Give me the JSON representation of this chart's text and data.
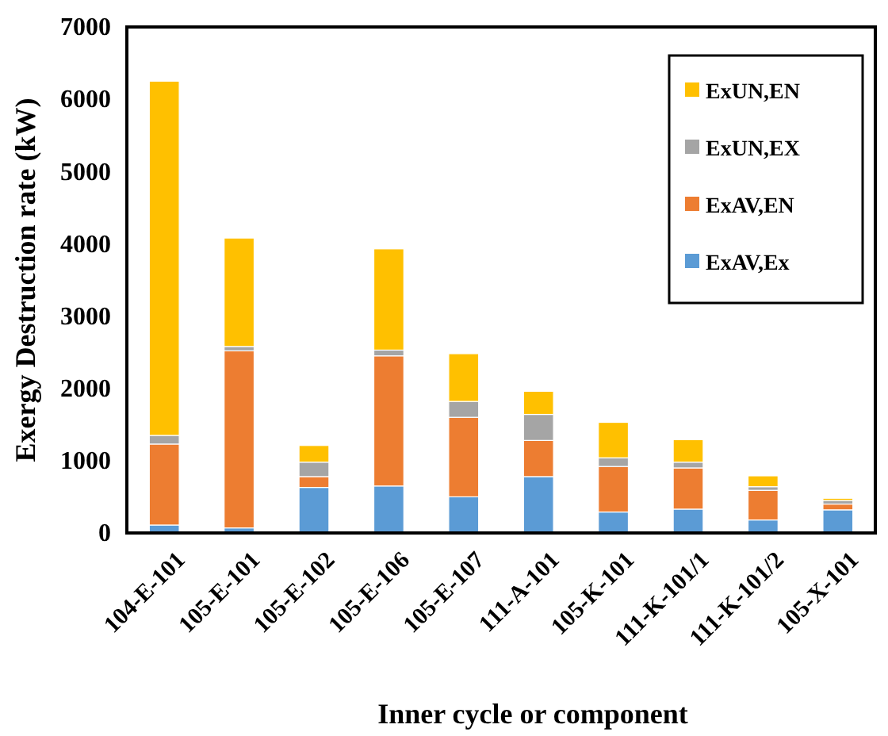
{
  "chart_data": {
    "type": "bar",
    "stacked": true,
    "xlabel": "Inner cycle or component",
    "ylabel": "Exergy Destruction rate (kW)",
    "categories": [
      "104-E-101",
      "105-E-101",
      "105-E-102",
      "105-E-106",
      "105-E-107",
      "111-A-101",
      "105-K-101",
      "111-K-101/1",
      "111-K-101/2",
      "105-X-101"
    ],
    "series": [
      {
        "name": "ExAV,Ex",
        "color": "#5b9bd5",
        "values": [
          110,
          70,
          630,
          650,
          500,
          780,
          290,
          330,
          180,
          320
        ]
      },
      {
        "name": "ExAV,EN",
        "color": "#ed7d31",
        "values": [
          1120,
          2450,
          150,
          1800,
          1100,
          500,
          630,
          570,
          410,
          80
        ]
      },
      {
        "name": "ExUN,EX",
        "color": "#a5a5a5",
        "values": [
          120,
          60,
          200,
          80,
          220,
          360,
          120,
          80,
          50,
          50
        ]
      },
      {
        "name": "ExUN,EN",
        "color": "#ffc000",
        "values": [
          4900,
          1500,
          230,
          1400,
          660,
          320,
          490,
          310,
          150,
          30
        ]
      }
    ],
    "ylim": [
      0,
      7000
    ],
    "yticks": [
      0,
      1000,
      2000,
      3000,
      4000,
      5000,
      6000,
      7000
    ],
    "grid": false,
    "legend": "top right"
  }
}
